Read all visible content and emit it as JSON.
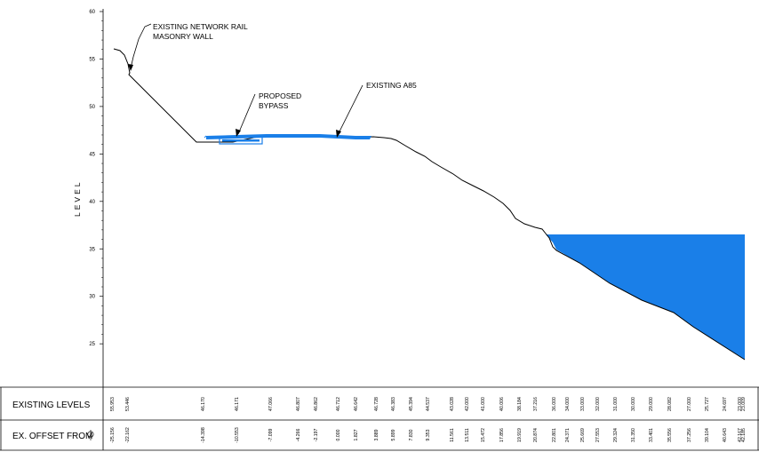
{
  "y_axis": {
    "label": "LEVEL",
    "ticks": [
      "60",
      "55",
      "50",
      "45",
      "40",
      "35",
      "30",
      "25"
    ]
  },
  "annotations": {
    "wall_line1": "EXISTING NETWORK RAIL",
    "wall_line2": "MASONRY WALL",
    "bypass_line1": "PROPOSED",
    "bypass_line2": "BYPASS",
    "a85": "EXISTING A85"
  },
  "table": {
    "levels_header": "EXISTING LEVELS",
    "offset_header": "EX. OFFSET FROM",
    "levels": [
      "55.953",
      "53.446",
      "46.170",
      "46.171",
      "47.066",
      "46.807",
      "46.862",
      "46.712",
      "46.642",
      "46.728",
      "46.383",
      "45.394",
      "44.537",
      "43.028",
      "42.000",
      "41.000",
      "40.006",
      "38.184",
      "37.216",
      "36.000",
      "34.000",
      "33.000",
      "32.000",
      "31.000",
      "30.000",
      "29.000",
      "28.082",
      "27.000",
      "25.727",
      "24.697",
      "23.000",
      "23.009"
    ],
    "offsets": [
      "-25.156",
      "-22.162",
      "-14.398",
      "-10.553",
      "-7.099",
      "-4.266",
      "-2.197",
      "0.000",
      "1.827",
      "3.889",
      "5.899",
      "7.830",
      "9.353",
      "11.561",
      "13.511",
      "15.472",
      "17.856",
      "19.919",
      "20.874",
      "22.801",
      "24.371",
      "25.669",
      "27.553",
      "29.324",
      "31.350",
      "33.401",
      "35.556",
      "37.256",
      "39.104",
      "40.643",
      "42.167",
      "42.185"
    ]
  },
  "colors": {
    "fill": "#1a7fe8",
    "line": "#000000"
  }
}
